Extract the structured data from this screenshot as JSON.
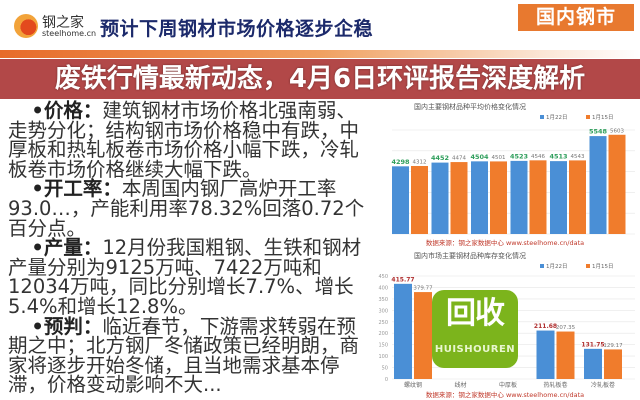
{
  "header": {
    "logo_cn": "钢之家",
    "logo_en": "steelhome.cn",
    "title": "预计下周钢材市场价格逐步企稳",
    "section_tag": "国内钢市"
  },
  "body": {
    "paragraphs": [
      {
        "label": "•价格：",
        "text": "建筑钢材市场价格北强南弱、走势分化；结构钢市场价格稳中有跌，中厚板和热轧板卷市场价格小幅下跌，冷轧板卷市场价格继续大幅下跌。"
      },
      {
        "label": "•开工率：",
        "text": "本周国内钢厂高炉开工率93.0…，产能利用率78.32%回落0.72个百分点。"
      },
      {
        "label": "•产量：",
        "text": "12月份我国粗钢、生铁和钢材产量分别为9125万吨、7422万吨和12034万吨，同比分别增长7.7%、增长5.4%和增长12.8%。"
      },
      {
        "label": "•预判：",
        "text": "临近春节，下游需求转弱在预期之中；北方钢厂冬储政策已经明朗，商家将逐步开始冬储，且当地需求基本停滞，价格变动影响不大..."
      }
    ]
  },
  "overlay": {
    "title_line1": "废铁行情最新动态，4月6日环评报告深度",
    "title_line2": "解析",
    "color": "#a52828"
  },
  "watermark": {
    "text": "回收",
    "en": "HUISHOUREN",
    "color": "#7cb41c"
  },
  "chart_data": [
    {
      "type": "bar",
      "title": "国内主要钢材品种平均价格变化情况",
      "series": [
        {
          "name": "1月22日",
          "color": "#4a8fd6",
          "values": [
            4298,
            4452,
            4504,
            4523,
            4513,
            5548
          ]
        },
        {
          "name": "1月15日",
          "color": "#f07c2c",
          "values": [
            4312,
            4474,
            4501,
            4546,
            4543,
            5603
          ]
        }
      ],
      "legend": "top-right",
      "grid": true,
      "ylim": [
        1500,
        5800
      ],
      "source": "数据来源：钢之家数据中心 www.steelhome.cn/data"
    },
    {
      "type": "bar",
      "title": "国内市场主要钢材品种库存变化情况",
      "categories": [
        "螺纹钢",
        "线材",
        "中厚板",
        "热轧板卷",
        "冷轧板卷"
      ],
      "series": [
        {
          "name": "1月22日",
          "color": "#4a8fd6",
          "values": [
            415.77,
            null,
            null,
            211.68,
            131.75
          ]
        },
        {
          "name": "1月15日",
          "color": "#f07c2c",
          "values": [
            379.77,
            null,
            null,
            207.35,
            129.17
          ]
        }
      ],
      "legend": "top-right",
      "grid": true,
      "ylim": [
        0,
        450
      ],
      "yticks": [
        0,
        50,
        100,
        150,
        200,
        250,
        300,
        350,
        400,
        450
      ],
      "source": "数据来源：钢之家数据中心 www.steelhome.cn/data"
    }
  ]
}
